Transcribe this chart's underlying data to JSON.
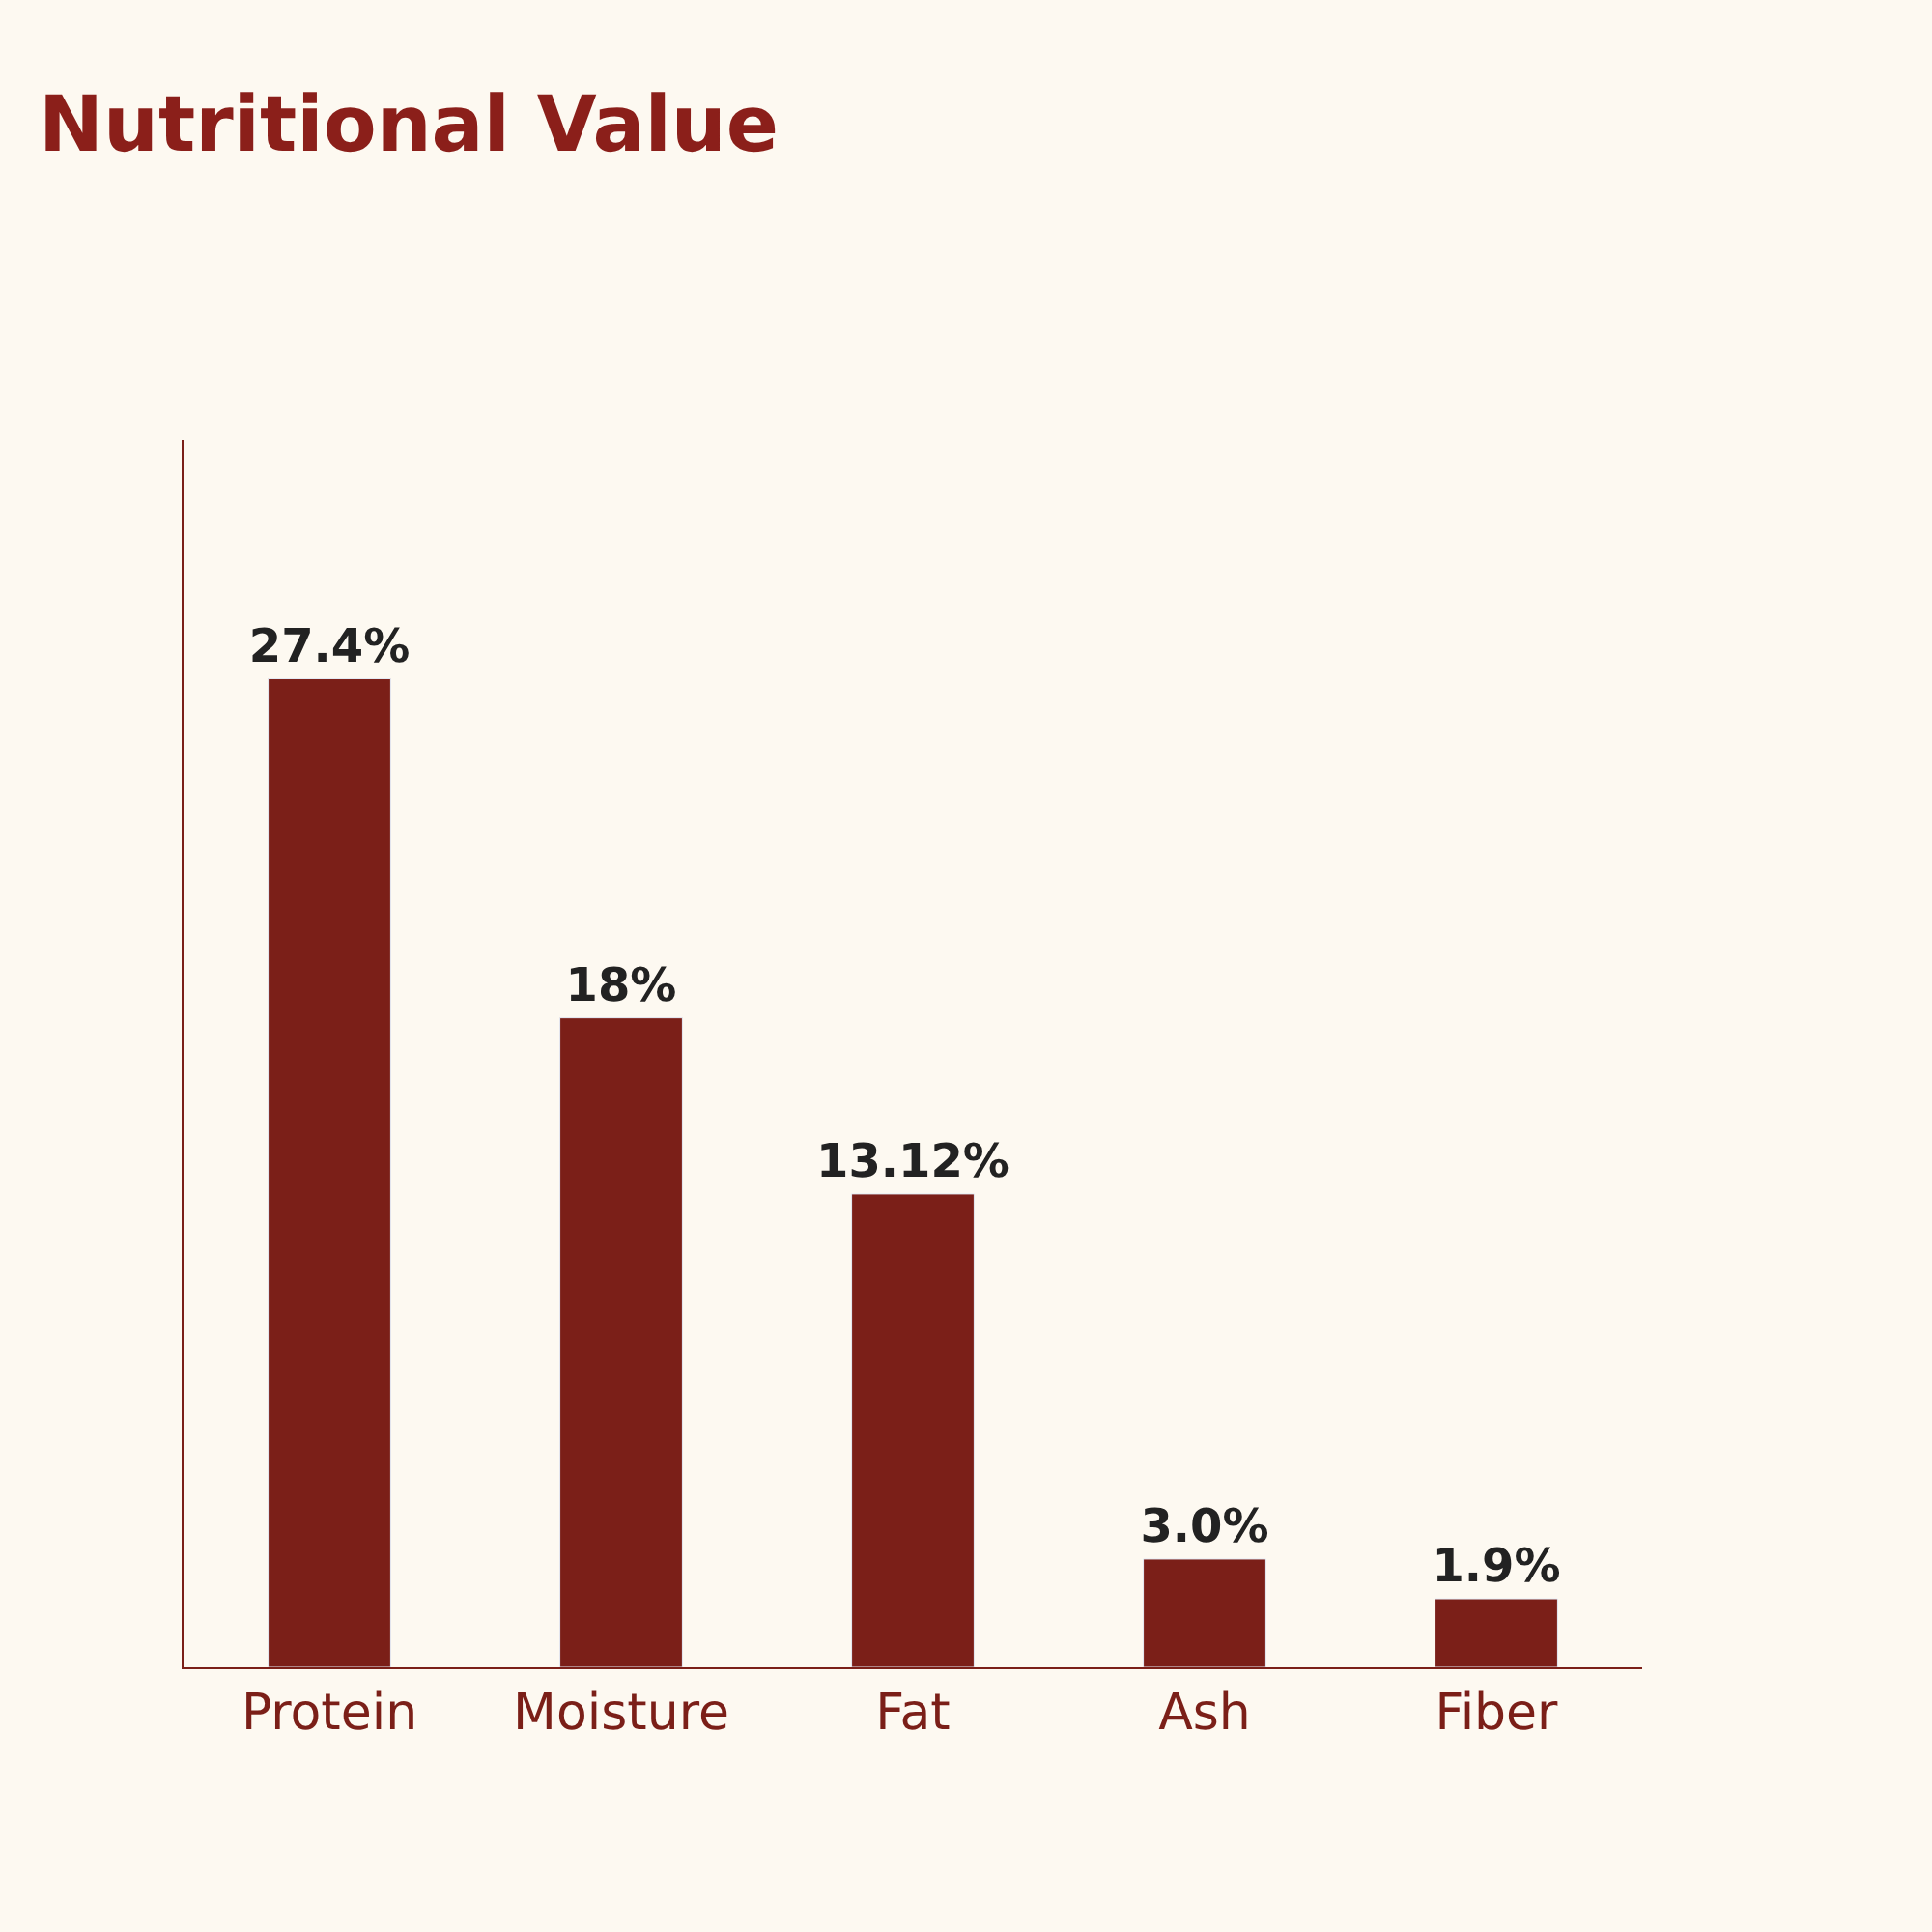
{
  "chart_data": {
    "type": "bar",
    "title": "Nutritional Value",
    "categories": [
      "Protein",
      "Moisture",
      "Fat",
      "Ash",
      "Fiber"
    ],
    "values": [
      27.4,
      18,
      13.12,
      3.0,
      1.9
    ],
    "value_labels": [
      "27.4%",
      "18%",
      "13.12%",
      "3.0%",
      "1.9%"
    ],
    "color": "#7b1f18",
    "ylim": [
      0,
      34
    ],
    "tick_labels": "x",
    "grid": false
  }
}
